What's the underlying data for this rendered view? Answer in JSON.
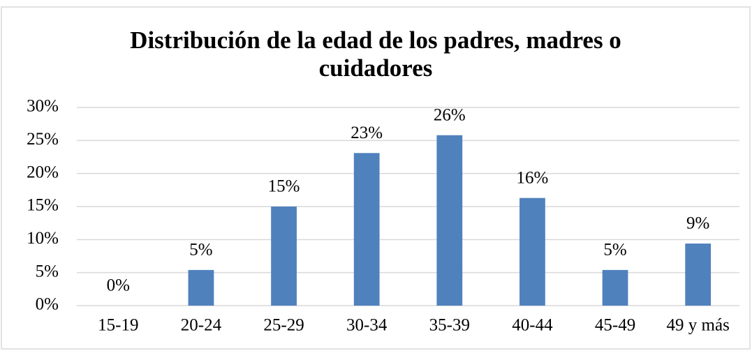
{
  "chart_data": {
    "type": "bar",
    "title": "Distribución de la edad de los padres, madres o cuidadores",
    "categories": [
      "15-19",
      "20-24",
      "25-29",
      "30-34",
      "35-39",
      "40-44",
      "45-49",
      "49 y más"
    ],
    "values": [
      0,
      5.4,
      15,
      23.1,
      25.8,
      16.3,
      5.4,
      9.4
    ],
    "value_labels": [
      "0%",
      "5%",
      "15%",
      "23%",
      "26%",
      "16%",
      "5%",
      "9%"
    ],
    "color": "#4f81bd",
    "ylim": [
      0,
      30
    ],
    "yticks": [
      {
        "value": 0,
        "label": "0%"
      },
      {
        "value": 5,
        "label": "5%"
      },
      {
        "value": 10,
        "label": "10%"
      },
      {
        "value": 15,
        "label": "15%"
      },
      {
        "value": 20,
        "label": "20%"
      },
      {
        "value": 25,
        "label": "25%"
      },
      {
        "value": 30,
        "label": "30%"
      }
    ],
    "grid": true
  }
}
